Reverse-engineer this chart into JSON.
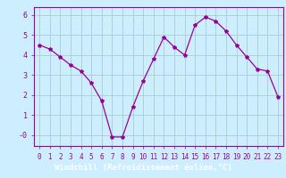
{
  "x": [
    0,
    1,
    2,
    3,
    4,
    5,
    6,
    7,
    8,
    9,
    10,
    11,
    12,
    13,
    14,
    15,
    16,
    17,
    18,
    19,
    20,
    21,
    22,
    23
  ],
  "y": [
    4.5,
    4.3,
    3.9,
    3.5,
    3.2,
    2.6,
    1.7,
    -0.1,
    -0.1,
    1.4,
    2.7,
    3.8,
    4.9,
    4.4,
    4.0,
    5.5,
    5.9,
    5.7,
    5.2,
    4.5,
    3.9,
    3.3,
    3.2,
    1.9
  ],
  "line_color": "#990099",
  "marker": "*",
  "marker_size": 3,
  "bg_color": "#cceeff",
  "grid_color": "#aacccc",
  "xlabel": "Windchill (Refroidissement éolien,°C)",
  "ylabel_ticks": [
    0,
    1,
    2,
    3,
    4,
    5,
    6
  ],
  "ytick_labels": [
    "-0",
    "1",
    "2",
    "3",
    "4",
    "5",
    "6"
  ],
  "xlim": [
    -0.5,
    23.5
  ],
  "ylim": [
    -0.55,
    6.4
  ],
  "xtick_fontsize": 5.5,
  "ytick_fontsize": 6,
  "xlabel_fontsize": 6.5,
  "line_width": 0.9
}
